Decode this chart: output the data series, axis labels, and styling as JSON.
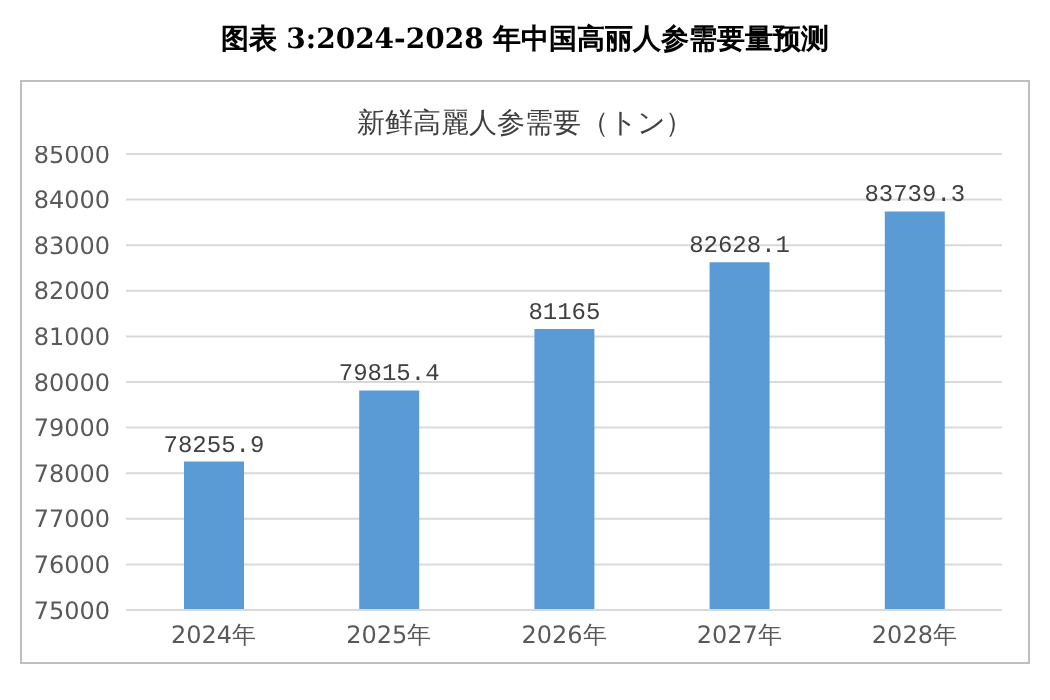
{
  "chart_data": {
    "type": "bar",
    "title": "图表 3:2024-2028 年中国高丽人参需要量预测",
    "subtitle": "新鲜高麗人参需要（トン）",
    "categories": [
      "2024年",
      "2025年",
      "2026年",
      "2027年",
      "2028年"
    ],
    "values": [
      78255.9,
      79815.4,
      81165,
      82628.1,
      83739.3
    ],
    "color": "#5b9bd5",
    "ylim": [
      75000,
      85000
    ],
    "yticks": [
      75000,
      76000,
      77000,
      78000,
      79000,
      80000,
      81000,
      82000,
      83000,
      84000,
      85000
    ],
    "grid": "y",
    "data_labels": true
  }
}
